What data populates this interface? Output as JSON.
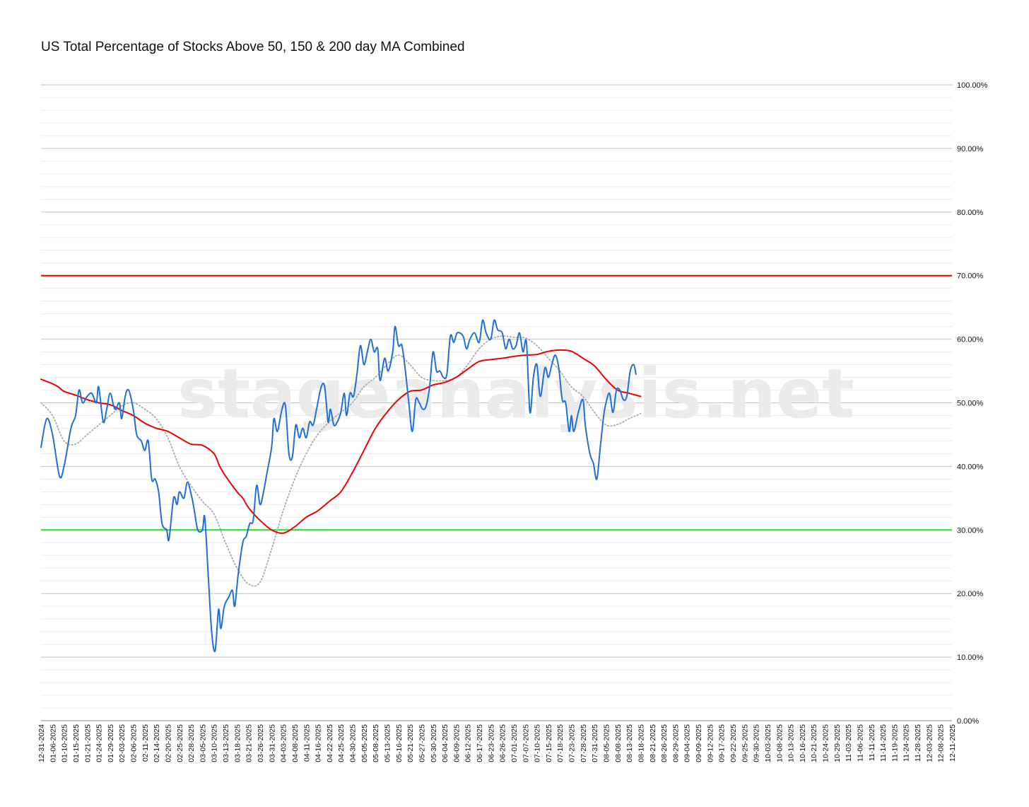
{
  "chart_data": {
    "type": "line",
    "title": "US Total Percentage of Stocks Above 50, 150 & 200 day MA Combined",
    "watermark": "stageanalysis.net",
    "ylim": [
      0,
      100
    ],
    "y_ticks": [
      "0.00%",
      "10.00%",
      "20.00%",
      "30.00%",
      "40.00%",
      "50.00%",
      "60.00%",
      "70.00%",
      "80.00%",
      "90.00%",
      "100.00%"
    ],
    "grid": true,
    "x_labels": [
      "12-31-2024",
      "01-06-2025",
      "01-10-2025",
      "01-15-2025",
      "01-21-2025",
      "01-24-2025",
      "01-29-2025",
      "02-03-2025",
      "02-06-2025",
      "02-11-2025",
      "02-14-2025",
      "02-20-2025",
      "02-25-2025",
      "02-28-2025",
      "03-05-2025",
      "03-10-2025",
      "03-13-2025",
      "03-18-2025",
      "03-21-2025",
      "03-26-2025",
      "03-31-2025",
      "04-03-2025",
      "04-08-2025",
      "04-11-2025",
      "04-16-2025",
      "04-22-2025",
      "04-25-2025",
      "04-30-2025",
      "05-05-2025",
      "05-08-2025",
      "05-13-2025",
      "05-16-2025",
      "05-21-2025",
      "05-27-2025",
      "05-30-2025",
      "06-04-2025",
      "06-09-2025",
      "06-12-2025",
      "06-17-2025",
      "06-23-2025",
      "06-26-2025",
      "07-01-2025",
      "07-07-2025",
      "07-10-2025",
      "07-15-2025",
      "07-18-2025",
      "07-23-2025",
      "07-28-2025",
      "07-31-2025",
      "08-05-2025",
      "08-08-2025",
      "08-13-2025",
      "08-18-2025",
      "08-21-2025",
      "08-26-2025",
      "08-29-2025",
      "09-04-2025",
      "09-09-2025",
      "09-12-2025",
      "09-17-2025",
      "09-22-2025",
      "09-25-2025",
      "09-30-2025",
      "10-03-2025",
      "10-08-2025",
      "10-13-2025",
      "10-16-2025",
      "10-21-2025",
      "10-24-2025",
      "10-29-2025",
      "11-03-2025",
      "11-06-2025",
      "11-11-2025",
      "11-14-2025",
      "11-19-2025",
      "11-24-2025",
      "11-28-2025",
      "12-03-2025",
      "12-08-2025",
      "12-11-2025"
    ],
    "reference_lines": [
      {
        "value": 70,
        "color": "#ee0000"
      },
      {
        "value": 30,
        "color": "#22dd22"
      }
    ],
    "series": [
      {
        "color": "#1f6fd6",
        "style": "solid",
        "points": [
          [
            0,
            43
          ],
          [
            0.5,
            47.5
          ],
          [
            1,
            45
          ],
          [
            1.6,
            38.5
          ],
          [
            2,
            40
          ],
          [
            2.6,
            46
          ],
          [
            3,
            48
          ],
          [
            3.3,
            52
          ],
          [
            3.6,
            50
          ],
          [
            4,
            51
          ],
          [
            4.4,
            51.5
          ],
          [
            4.8,
            50
          ],
          [
            5,
            52.5
          ],
          [
            5.4,
            47
          ],
          [
            5.7,
            49
          ],
          [
            6,
            51.5
          ],
          [
            6.4,
            49
          ],
          [
            6.8,
            50
          ],
          [
            7,
            47.5
          ],
          [
            7.3,
            51
          ],
          [
            7.6,
            52
          ],
          [
            8,
            49
          ],
          [
            8.3,
            45
          ],
          [
            8.7,
            44
          ],
          [
            9,
            42.5
          ],
          [
            9.3,
            44
          ],
          [
            9.6,
            38
          ],
          [
            9.9,
            38
          ],
          [
            10.2,
            36
          ],
          [
            10.5,
            31
          ],
          [
            10.9,
            30
          ],
          [
            11.1,
            28.5
          ],
          [
            11.5,
            35
          ],
          [
            11.8,
            34
          ],
          [
            12,
            36
          ],
          [
            12.4,
            35
          ],
          [
            12.7,
            37.5
          ],
          [
            13.1,
            35
          ],
          [
            13.3,
            33
          ],
          [
            13.6,
            30
          ],
          [
            14,
            30
          ],
          [
            14.2,
            32
          ],
          [
            14.5,
            23
          ],
          [
            14.8,
            14
          ],
          [
            15.1,
            11
          ],
          [
            15.4,
            17.5
          ],
          [
            15.6,
            14.5
          ],
          [
            15.9,
            18
          ],
          [
            16.3,
            19.5
          ],
          [
            16.6,
            20.5
          ],
          [
            16.8,
            18
          ],
          [
            17.1,
            23
          ],
          [
            17.5,
            28
          ],
          [
            17.8,
            29
          ],
          [
            18.1,
            31
          ],
          [
            18.4,
            31.5
          ],
          [
            18.7,
            37
          ],
          [
            19,
            34
          ],
          [
            19.3,
            36
          ],
          [
            19.6,
            39
          ],
          [
            20,
            43
          ],
          [
            20.2,
            47.5
          ],
          [
            20.5,
            45.5
          ],
          [
            20.9,
            49
          ],
          [
            21.2,
            49.5
          ],
          [
            21.5,
            42
          ],
          [
            21.8,
            41.5
          ],
          [
            22.1,
            46.5
          ],
          [
            22.4,
            44.5
          ],
          [
            22.7,
            46
          ],
          [
            23,
            44.5
          ],
          [
            23.3,
            47
          ],
          [
            23.6,
            46.5
          ],
          [
            23.9,
            49
          ],
          [
            24.3,
            52.5
          ],
          [
            24.6,
            52.5
          ],
          [
            24.9,
            47
          ],
          [
            25.1,
            49
          ],
          [
            25.4,
            46.5
          ],
          [
            25.7,
            47
          ],
          [
            26,
            48.5
          ],
          [
            26.3,
            51.5
          ],
          [
            26.5,
            48
          ],
          [
            26.8,
            51.5
          ],
          [
            27.1,
            51
          ],
          [
            27.4,
            54.5
          ],
          [
            27.7,
            59
          ],
          [
            28,
            56
          ],
          [
            28.3,
            58
          ],
          [
            28.6,
            60
          ],
          [
            28.9,
            58
          ],
          [
            29.2,
            58.5
          ],
          [
            29.4,
            53.5
          ],
          [
            29.8,
            57
          ],
          [
            30.1,
            55
          ],
          [
            30.5,
            58
          ],
          [
            30.7,
            62
          ],
          [
            31,
            59
          ],
          [
            31.3,
            59
          ],
          [
            31.6,
            55
          ],
          [
            31.9,
            50
          ],
          [
            32.2,
            45.5
          ],
          [
            32.5,
            50.5
          ],
          [
            32.8,
            50
          ],
          [
            33.1,
            49
          ],
          [
            33.4,
            49.5
          ],
          [
            33.7,
            52.5
          ],
          [
            34,
            58
          ],
          [
            34.3,
            55
          ],
          [
            34.6,
            55
          ],
          [
            34.9,
            54
          ],
          [
            35.2,
            54.5
          ],
          [
            35.5,
            60.5
          ],
          [
            35.8,
            59.5
          ],
          [
            36.1,
            61
          ],
          [
            36.6,
            60.5
          ],
          [
            36.9,
            58.5
          ],
          [
            37.2,
            60
          ],
          [
            37.6,
            61
          ],
          [
            38,
            59.5
          ],
          [
            38.3,
            63
          ],
          [
            38.6,
            61
          ],
          [
            39,
            60
          ],
          [
            39.3,
            63
          ],
          [
            39.6,
            61.5
          ],
          [
            40,
            61
          ],
          [
            40.3,
            58.5
          ],
          [
            40.6,
            60
          ],
          [
            40.9,
            58.5
          ],
          [
            41.2,
            59
          ],
          [
            41.5,
            61
          ],
          [
            41.8,
            58
          ],
          [
            42.1,
            59.5
          ],
          [
            42.4,
            48.5
          ],
          [
            42.7,
            54
          ],
          [
            43,
            56
          ],
          [
            43.3,
            51
          ],
          [
            43.7,
            55.5
          ],
          [
            44,
            54
          ],
          [
            44.3,
            56
          ],
          [
            44.6,
            57.5
          ],
          [
            44.9,
            55.5
          ],
          [
            45.2,
            50.5
          ],
          [
            45.5,
            50
          ],
          [
            45.8,
            45.5
          ],
          [
            46,
            48
          ],
          [
            46.2,
            45.5
          ],
          [
            46.6,
            48.5
          ],
          [
            47,
            50.5
          ],
          [
            47.2,
            46.5
          ],
          [
            47.6,
            42
          ],
          [
            47.9,
            40.5
          ],
          [
            48.2,
            38
          ],
          [
            48.5,
            43
          ],
          [
            48.8,
            48
          ],
          [
            49,
            50
          ],
          [
            49.3,
            51.5
          ],
          [
            49.6,
            48.5
          ],
          [
            49.9,
            52
          ],
          [
            50.2,
            52
          ],
          [
            50.5,
            50.5
          ],
          [
            50.8,
            51
          ],
          [
            51.1,
            55
          ],
          [
            51.4,
            56
          ],
          [
            51.6,
            54.5
          ]
        ]
      },
      {
        "color": "#ee0000",
        "style": "solid",
        "points": [
          [
            0,
            53.7
          ],
          [
            1,
            53
          ],
          [
            1.5,
            52.5
          ],
          [
            2,
            51.8
          ],
          [
            3,
            51.2
          ],
          [
            4,
            50.5
          ],
          [
            5,
            50
          ],
          [
            6,
            49.7
          ],
          [
            7,
            48.8
          ],
          [
            8,
            48
          ],
          [
            9,
            46.8
          ],
          [
            10,
            46
          ],
          [
            11,
            45.5
          ],
          [
            12,
            44.5
          ],
          [
            13,
            43.5
          ],
          [
            14,
            43.3
          ],
          [
            15,
            42
          ],
          [
            15.5,
            40
          ],
          [
            16,
            38.5
          ],
          [
            17,
            36
          ],
          [
            17.5,
            35
          ],
          [
            18,
            33.5
          ],
          [
            19,
            31.5
          ],
          [
            20,
            30
          ],
          [
            21,
            29.5
          ],
          [
            22,
            30.5
          ],
          [
            23,
            32
          ],
          [
            24,
            33
          ],
          [
            25,
            34.5
          ],
          [
            26,
            36
          ],
          [
            27,
            39
          ],
          [
            28,
            42.5
          ],
          [
            29,
            46
          ],
          [
            30,
            48.5
          ],
          [
            31,
            50.5
          ],
          [
            32,
            51.8
          ],
          [
            33,
            52
          ],
          [
            34,
            52.8
          ],
          [
            35,
            53.2
          ],
          [
            36,
            54
          ],
          [
            37,
            55.3
          ],
          [
            38,
            56.5
          ],
          [
            39,
            56.8
          ],
          [
            40,
            57
          ],
          [
            41,
            57.3
          ],
          [
            42,
            57.5
          ],
          [
            43,
            57.6
          ],
          [
            44,
            58.1
          ],
          [
            45,
            58.3
          ],
          [
            46,
            58.1
          ],
          [
            47,
            57
          ],
          [
            48,
            55.8
          ],
          [
            49,
            53.7
          ],
          [
            50,
            52
          ],
          [
            51,
            51.5
          ],
          [
            52,
            51
          ]
        ]
      },
      {
        "color": "#aaaaaa",
        "style": "dotted",
        "points": [
          [
            0,
            50
          ],
          [
            1,
            48
          ],
          [
            2,
            44
          ],
          [
            3,
            43.5
          ],
          [
            4,
            45
          ],
          [
            5,
            46.5
          ],
          [
            6,
            48
          ],
          [
            7,
            49.5
          ],
          [
            8,
            50
          ],
          [
            9,
            49
          ],
          [
            10,
            47.5
          ],
          [
            11,
            44.5
          ],
          [
            12,
            40
          ],
          [
            13,
            37
          ],
          [
            14,
            34.5
          ],
          [
            15,
            32.5
          ],
          [
            16,
            28
          ],
          [
            17,
            24
          ],
          [
            18,
            21.5
          ],
          [
            19,
            21.8
          ],
          [
            20,
            27
          ],
          [
            21,
            33
          ],
          [
            22,
            38
          ],
          [
            23,
            42
          ],
          [
            24,
            45
          ],
          [
            25,
            47
          ],
          [
            26,
            48.5
          ],
          [
            27,
            50
          ],
          [
            28,
            52.5
          ],
          [
            29,
            54
          ],
          [
            30,
            56
          ],
          [
            31,
            57.5
          ],
          [
            32,
            56
          ],
          [
            33,
            54
          ],
          [
            34,
            53.5
          ],
          [
            35,
            53.5
          ],
          [
            36,
            54
          ],
          [
            37,
            56
          ],
          [
            38,
            58.5
          ],
          [
            39,
            60
          ],
          [
            40,
            60.5
          ],
          [
            41,
            60.3
          ],
          [
            42,
            60.2
          ],
          [
            43,
            59
          ],
          [
            44,
            57
          ],
          [
            45,
            55
          ],
          [
            46,
            52.5
          ],
          [
            47,
            51
          ],
          [
            48,
            48.5
          ],
          [
            49,
            46.5
          ],
          [
            50,
            46.6
          ],
          [
            51,
            47.5
          ],
          [
            52,
            48.3
          ]
        ]
      }
    ]
  }
}
